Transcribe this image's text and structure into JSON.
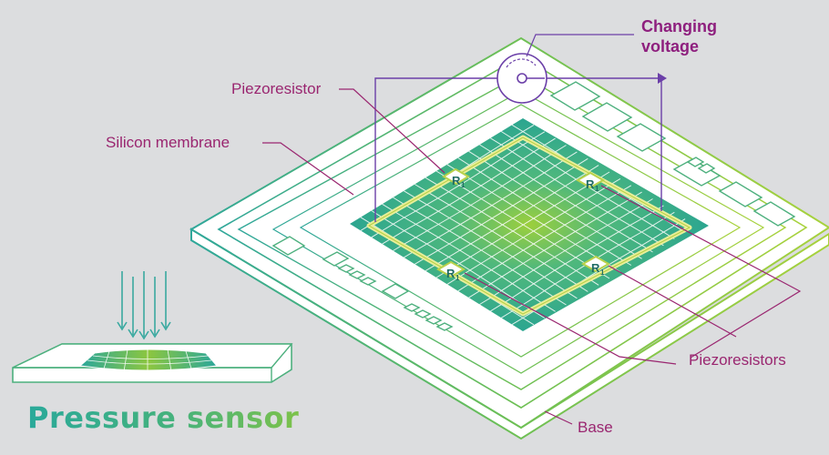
{
  "title": "Pressure sensor",
  "labels": {
    "changing_voltage_line1": "Changing",
    "changing_voltage_line2": "voltage",
    "piezoresistor": "Piezoresistor",
    "silicon_membrane": "Silicon membrane",
    "piezoresistors": "Piezoresistors",
    "base": "Base"
  },
  "resistor_label": "R",
  "resistor_subscript": "1",
  "colors": {
    "background": "#dcdddf",
    "label_magenta": "#9a2670",
    "title_gradient_start": "#2aa99a",
    "title_gradient_end": "#7dc24b",
    "membrane_teal": "#25a99c",
    "membrane_center": "#8cc63f",
    "frame_yellow": "#ecf0a8",
    "wire_purple": "#6b3fa8"
  }
}
